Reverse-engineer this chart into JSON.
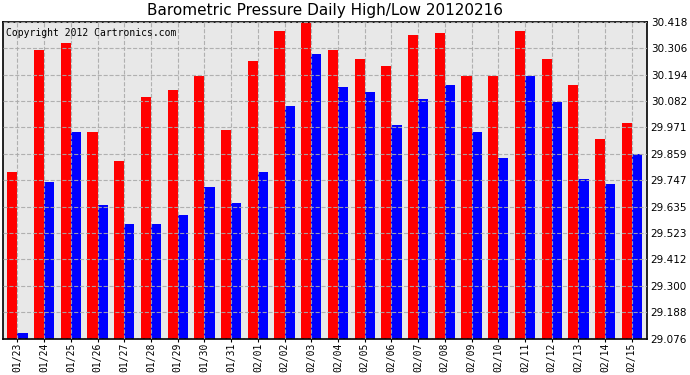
{
  "title": "Barometric Pressure Daily High/Low 20120216",
  "copyright": "Copyright 2012 Cartronics.com",
  "dates": [
    "01/23",
    "01/24",
    "01/25",
    "01/26",
    "01/27",
    "01/28",
    "01/29",
    "01/30",
    "01/31",
    "02/01",
    "02/02",
    "02/03",
    "02/04",
    "02/05",
    "02/06",
    "02/07",
    "02/08",
    "02/09",
    "02/10",
    "02/11",
    "02/12",
    "02/13",
    "02/14",
    "02/15"
  ],
  "highs": [
    29.78,
    30.3,
    30.33,
    29.95,
    29.83,
    30.1,
    30.13,
    30.19,
    29.96,
    30.25,
    30.38,
    30.418,
    30.3,
    30.26,
    30.23,
    30.36,
    30.37,
    30.19,
    30.19,
    30.38,
    30.26,
    30.15,
    29.92,
    29.99
  ],
  "lows": [
    29.1,
    29.74,
    29.95,
    29.64,
    29.56,
    29.56,
    29.6,
    29.72,
    29.65,
    29.78,
    30.06,
    30.28,
    30.14,
    30.12,
    29.98,
    30.09,
    30.15,
    29.95,
    29.84,
    30.19,
    30.08,
    29.75,
    29.73,
    29.86
  ],
  "ymin": 29.076,
  "ymax": 30.418,
  "yticks": [
    30.418,
    30.306,
    30.194,
    30.082,
    29.971,
    29.859,
    29.747,
    29.635,
    29.523,
    29.412,
    29.3,
    29.188,
    29.076
  ],
  "bar_width": 0.38,
  "high_color": "#ff0000",
  "low_color": "#0000ff",
  "bg_color": "#ffffff",
  "plot_bg_color": "#e8e8e8",
  "grid_color": "#aaaaaa",
  "title_fontsize": 11,
  "copyright_fontsize": 7,
  "tick_fontsize": 7,
  "ytick_fontsize": 7.5
}
